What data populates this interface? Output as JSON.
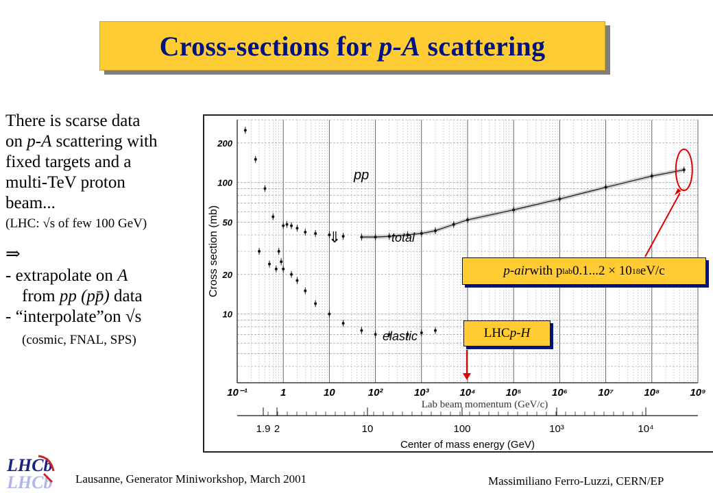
{
  "title": {
    "prefix": "Cross-sections for ",
    "italic": "p-A",
    "suffix": " scattering"
  },
  "left_text": {
    "line1": "There is scarse data",
    "line2_pre": "on ",
    "line2_it": "p-A",
    "line2_post": " scattering with",
    "line3": "fixed targets and a",
    "line4": "multi-TeV proton",
    "line5": "beam...",
    "line6": "(LHC: √s of few 100 GeV)",
    "arrow": "⇒",
    "bullet1_pre": "- extrapolate on ",
    "bullet1_it": "A",
    "bullet2_pre": "from ",
    "bullet2_it": "pp (pp̄)",
    "bullet2_post": " data",
    "bullet3": "- “interpolate”on √s",
    "bullet4": "(cosmic, FNAL, SPS)"
  },
  "callouts": {
    "pair_it": "p-air",
    "pair_text": " with p",
    "pair_sub": "lab",
    "pair_range": " 0.1...2 × 10",
    "pair_sup": "18",
    "pair_unit": " eV/c",
    "lhc_text": "LHC ",
    "lhc_it": "p-H"
  },
  "footer": {
    "left": "Lausanne, Generator Miniworkshop, March 2001",
    "right": "Massimiliano Ferro-Luzzi, CERN/EP"
  },
  "logo": {
    "line1": "LHCb",
    "line2": "LHCb"
  },
  "colors": {
    "title_bg": "#ffcc33",
    "title_text": "#00137f",
    "annotation_red": "#e00000"
  },
  "chart_data": {
    "type": "scatter",
    "ylabel": "Cross section (mb)",
    "xlabel": "Lab beam momentum (GeV/c)",
    "x2label": "Center of mass energy (GeV)",
    "yscale": "log",
    "xscale": "log",
    "xlim": [
      0.1,
      1000000000
    ],
    "ylim": [
      3,
      300
    ],
    "x_ticks": [
      "10⁻¹",
      "1",
      "10",
      "10²",
      "10³",
      "10⁴",
      "10⁵",
      "10⁶",
      "10⁷",
      "10⁸",
      "10⁹"
    ],
    "y_ticks": [
      "10",
      "20",
      "50",
      "100",
      "200"
    ],
    "x2_ticks": [
      "1.9",
      "2",
      "10",
      "100",
      "10³",
      "10⁴"
    ],
    "labels": {
      "pp": "pp",
      "total": "total",
      "elastic": "elastic",
      "down_arrow": "⇓"
    },
    "series": [
      {
        "name": "total",
        "x": [
          0.15,
          0.25,
          0.4,
          0.6,
          0.8,
          0.9,
          1.0,
          1.2,
          1.5,
          2,
          3,
          5,
          10,
          20,
          50,
          100,
          200,
          500,
          1000,
          2000,
          5000,
          10000,
          100000,
          1000000,
          10000000,
          100000000,
          500000000
        ],
        "y": [
          250,
          150,
          90,
          55,
          30,
          25,
          47,
          48,
          47,
          45,
          42,
          41,
          40,
          39,
          38.5,
          38.5,
          39,
          40,
          41,
          43,
          48,
          52,
          62,
          75,
          92,
          112,
          125
        ]
      },
      {
        "name": "elastic",
        "x": [
          0.3,
          0.5,
          0.7,
          1.0,
          1.5,
          2,
          3,
          5,
          10,
          20,
          50,
          100,
          200,
          500,
          1000,
          2000
        ],
        "y": [
          30,
          24,
          22,
          22,
          20,
          18,
          15,
          12,
          10,
          8.5,
          7.5,
          7,
          7,
          7,
          7.2,
          7.5
        ]
      }
    ]
  }
}
